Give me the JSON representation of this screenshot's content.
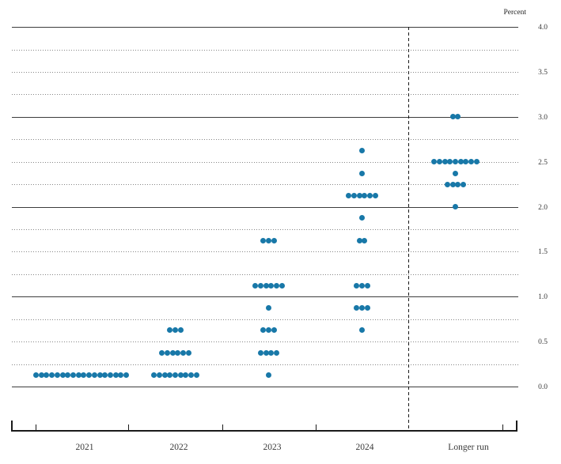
{
  "chart_data": {
    "type": "scatter",
    "variant": "fomc-dot-plot",
    "title": "",
    "ylabel": "Percent",
    "xlabel": "",
    "ylim": [
      0.0,
      4.0
    ],
    "grid_step": 0.25,
    "label_step": 0.5,
    "grid_style": {
      "whole_percent": "solid",
      "quarter_percent": "dotted"
    },
    "legend_position": "none",
    "y_tick_labels": [
      "4.0",
      "3.5",
      "3.0",
      "2.5",
      "2.0",
      "1.5",
      "1.0",
      "0.5",
      "0.0"
    ],
    "dot_color": "#1878a8",
    "separator": {
      "style": "dashed",
      "after_column": "2024"
    },
    "columns": [
      {
        "label": "2021",
        "dots": [
          {
            "rate": 0.125,
            "count": 18
          }
        ]
      },
      {
        "label": "2022",
        "dots": [
          {
            "rate": 0.625,
            "count": 3
          },
          {
            "rate": 0.375,
            "count": 6
          },
          {
            "rate": 0.125,
            "count": 9
          }
        ]
      },
      {
        "label": "2023",
        "dots": [
          {
            "rate": 1.625,
            "count": 3
          },
          {
            "rate": 1.125,
            "count": 6
          },
          {
            "rate": 0.875,
            "count": 1
          },
          {
            "rate": 0.625,
            "count": 3
          },
          {
            "rate": 0.375,
            "count": 4
          },
          {
            "rate": 0.125,
            "count": 1
          }
        ]
      },
      {
        "label": "2024",
        "dots": [
          {
            "rate": 2.625,
            "count": 1
          },
          {
            "rate": 2.375,
            "count": 1
          },
          {
            "rate": 2.125,
            "count": 6
          },
          {
            "rate": 1.875,
            "count": 1
          },
          {
            "rate": 1.625,
            "count": 2
          },
          {
            "rate": 1.125,
            "count": 3
          },
          {
            "rate": 0.875,
            "count": 3
          },
          {
            "rate": 0.625,
            "count": 1
          }
        ]
      },
      {
        "label": "Longer run",
        "dots": [
          {
            "rate": 3.0,
            "count": 2
          },
          {
            "rate": 2.5,
            "count": 9
          },
          {
            "rate": 2.375,
            "count": 1
          },
          {
            "rate": 2.25,
            "count": 4
          },
          {
            "rate": 2.0,
            "count": 1
          }
        ]
      }
    ]
  }
}
